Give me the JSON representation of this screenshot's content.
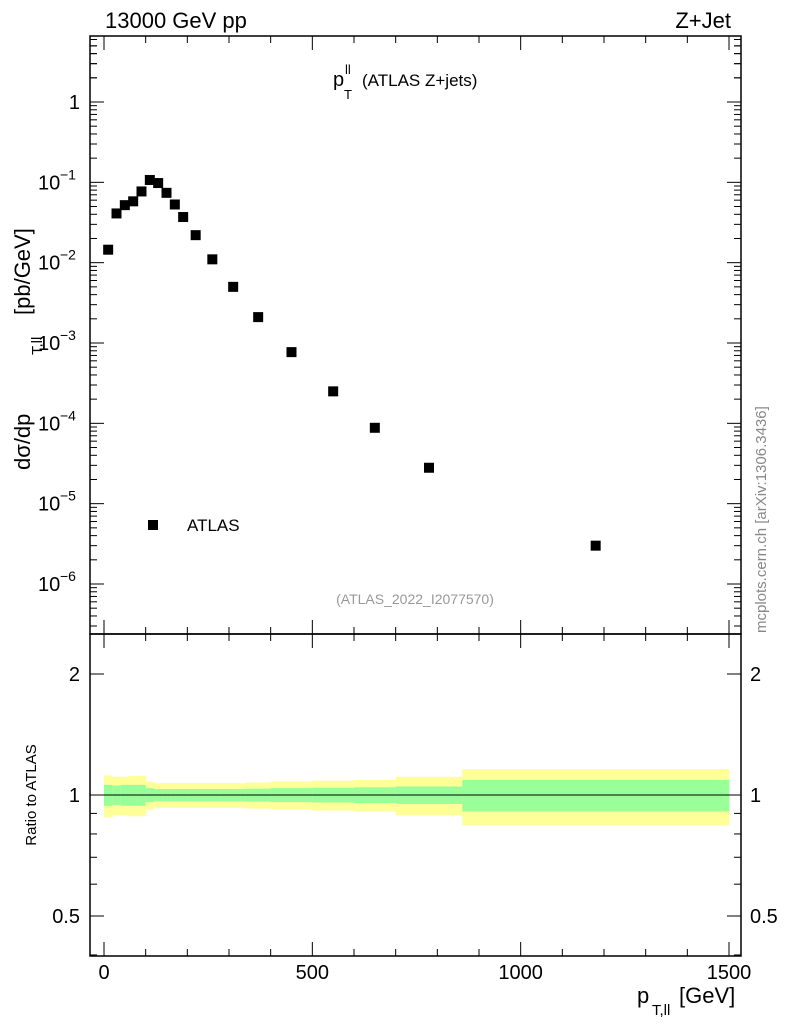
{
  "header": {
    "left": "13000 GeV pp",
    "right": "Z+Jet"
  },
  "side_label": "mcplots.cern.ch [arXiv:1306.3436]",
  "colors": {
    "green_band": "#99ff99",
    "yellow_band": "#ffff99",
    "watermark": "#999999"
  },
  "chart_data": [
    {
      "type": "scatter",
      "title_main": "p",
      "title_sup": "ll",
      "title_sub": "T",
      "title_rest": "(ATLAS Z+jets)",
      "ylabel_main": "dσ/dp",
      "ylabel_sub": "T,ll",
      "ylabel_rest": "[pb/GeV]",
      "yscale": "log",
      "ylim": [
        3e-07,
        6
      ],
      "xlim": [
        -30,
        1510
      ],
      "ytick_labels": [
        {
          "v": 1,
          "base": "1",
          "exp": ""
        },
        {
          "v": 0.1,
          "base": "10",
          "exp": "−1"
        },
        {
          "v": 0.01,
          "base": "10",
          "exp": "−2"
        },
        {
          "v": 0.001,
          "base": "10",
          "exp": "−3"
        },
        {
          "v": 0.0001,
          "base": "10",
          "exp": "−4"
        },
        {
          "v": 1e-05,
          "base": "10",
          "exp": "−5"
        },
        {
          "v": 1e-06,
          "base": "10",
          "exp": "−6"
        }
      ],
      "series": [
        {
          "name": "ATLAS",
          "x": [
            10,
            30,
            50,
            70,
            90,
            110,
            130,
            150,
            170,
            190,
            220,
            260,
            310,
            370,
            450,
            550,
            650,
            780,
            1180
          ],
          "y": [
            0.0145,
            0.041,
            0.052,
            0.058,
            0.077,
            0.107,
            0.098,
            0.074,
            0.053,
            0.037,
            0.022,
            0.011,
            0.005,
            0.0021,
            0.00077,
            0.00025,
            8.8e-05,
            2.8e-05,
            3e-06
          ]
        }
      ],
      "legend_position": "bottom-left",
      "watermark": "(ATLAS_2022_I2077570)"
    },
    {
      "type": "area",
      "ylabel": "Ratio to ATLAS",
      "yscale": "log",
      "ylim": [
        0.4,
        2.35
      ],
      "xlim": [
        -30,
        1510
      ],
      "xlabel_main": "p",
      "xlabel_sub": "T,ll",
      "xlabel_rest": "[GeV]",
      "ytick_labels": [
        {
          "v": 2,
          "label": "2"
        },
        {
          "v": 1,
          "label": "1"
        },
        {
          "v": 0.5,
          "label": "0.5"
        }
      ],
      "xtick_labels": [
        {
          "v": 0,
          "label": "0"
        },
        {
          "v": 500,
          "label": "500"
        },
        {
          "v": 1000,
          "label": "1000"
        },
        {
          "v": 1500,
          "label": "1500"
        }
      ],
      "bins": [
        0,
        20,
        40,
        60,
        80,
        100,
        120,
        140,
        160,
        180,
        200,
        240,
        280,
        340,
        400,
        500,
        600,
        700,
        860,
        1500
      ],
      "green_half": [
        0.06,
        0.055,
        0.06,
        0.06,
        0.06,
        0.04,
        0.035,
        0.035,
        0.035,
        0.035,
        0.035,
        0.035,
        0.035,
        0.037,
        0.04,
        0.042,
        0.045,
        0.05,
        0.09
      ],
      "yellow_half": [
        0.12,
        0.11,
        0.11,
        0.115,
        0.115,
        0.08,
        0.07,
        0.07,
        0.07,
        0.07,
        0.07,
        0.07,
        0.07,
        0.075,
        0.08,
        0.085,
        0.09,
        0.11,
        0.16
      ],
      "reference_line": 1
    }
  ]
}
